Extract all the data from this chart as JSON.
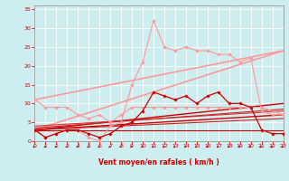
{
  "xlabel": "Vent moyen/en rafales ( km/h )",
  "bg_color": "#cceef0",
  "grid_color": "#aadddd",
  "x_ticks": [
    0,
    1,
    2,
    3,
    4,
    5,
    6,
    7,
    8,
    9,
    10,
    11,
    12,
    13,
    14,
    15,
    16,
    17,
    18,
    19,
    20,
    21,
    22,
    23
  ],
  "y_ticks": [
    0,
    5,
    10,
    15,
    20,
    25,
    30,
    35
  ],
  "xlim": [
    0,
    23
  ],
  "ylim": [
    0,
    36
  ],
  "series": [
    {
      "x": [
        0,
        1,
        2,
        3,
        4,
        5,
        6,
        7,
        8,
        9,
        10,
        11,
        12,
        13,
        14,
        15,
        16,
        17,
        18,
        19,
        20,
        21,
        22,
        23
      ],
      "y": [
        3,
        1,
        2,
        3,
        3,
        1,
        0,
        4,
        5,
        15,
        21,
        32,
        25,
        24,
        25,
        24,
        24,
        23,
        23,
        21,
        22,
        8,
        7,
        7
      ],
      "color": "#ff9999",
      "lw": 0.8,
      "marker": "D",
      "ms": 1.8
    },
    {
      "x": [
        0,
        1,
        2,
        3,
        4,
        5,
        6,
        7,
        8,
        9,
        10,
        11,
        12,
        13,
        14,
        15,
        16,
        17,
        18,
        19,
        20,
        21,
        22,
        23
      ],
      "y": [
        11,
        9,
        9,
        9,
        7,
        6,
        7,
        5,
        7,
        9,
        9,
        9,
        9,
        9,
        9,
        9,
        9,
        9,
        9,
        9,
        9,
        9,
        8,
        7
      ],
      "color": "#ff9999",
      "lw": 0.8,
      "marker": "D",
      "ms": 1.8
    },
    {
      "x": [
        0,
        23
      ],
      "y": [
        11,
        24
      ],
      "color": "#ff9999",
      "lw": 1.2,
      "marker": null,
      "ms": 0
    },
    {
      "x": [
        0,
        23
      ],
      "y": [
        3,
        24
      ],
      "color": "#ff9999",
      "lw": 1.2,
      "marker": null,
      "ms": 0
    },
    {
      "x": [
        0,
        1,
        2,
        3,
        4,
        5,
        6,
        7,
        8,
        9,
        10,
        11,
        12,
        13,
        14,
        15,
        16,
        17,
        18,
        19,
        20,
        21,
        22,
        23
      ],
      "y": [
        3,
        1,
        2,
        3,
        3,
        2,
        1,
        2,
        4,
        5,
        8,
        13,
        12,
        11,
        12,
        10,
        12,
        13,
        10,
        10,
        9,
        3,
        2,
        2
      ],
      "color": "#cc0000",
      "lw": 0.9,
      "marker": "D",
      "ms": 1.8
    },
    {
      "x": [
        0,
        23
      ],
      "y": [
        3,
        10
      ],
      "color": "#cc0000",
      "lw": 1.0,
      "marker": null,
      "ms": 0
    },
    {
      "x": [
        0,
        23
      ],
      "y": [
        3,
        7
      ],
      "color": "#cc0000",
      "lw": 1.0,
      "marker": null,
      "ms": 0
    },
    {
      "x": [
        0,
        23
      ],
      "y": [
        3,
        3
      ],
      "color": "#cc0000",
      "lw": 0.8,
      "marker": null,
      "ms": 0
    },
    {
      "x": [
        0,
        23
      ],
      "y": [
        4,
        8
      ],
      "color": "#dd3333",
      "lw": 0.8,
      "marker": null,
      "ms": 0
    },
    {
      "x": [
        0,
        23
      ],
      "y": [
        3,
        6
      ],
      "color": "#cc2222",
      "lw": 0.8,
      "marker": null,
      "ms": 0
    },
    {
      "x": [
        0,
        23
      ],
      "y": [
        3.5,
        8.5
      ],
      "color": "#cc2222",
      "lw": 0.8,
      "marker": null,
      "ms": 0
    }
  ],
  "tick_color": "#cc0000",
  "label_color": "#cc0000"
}
